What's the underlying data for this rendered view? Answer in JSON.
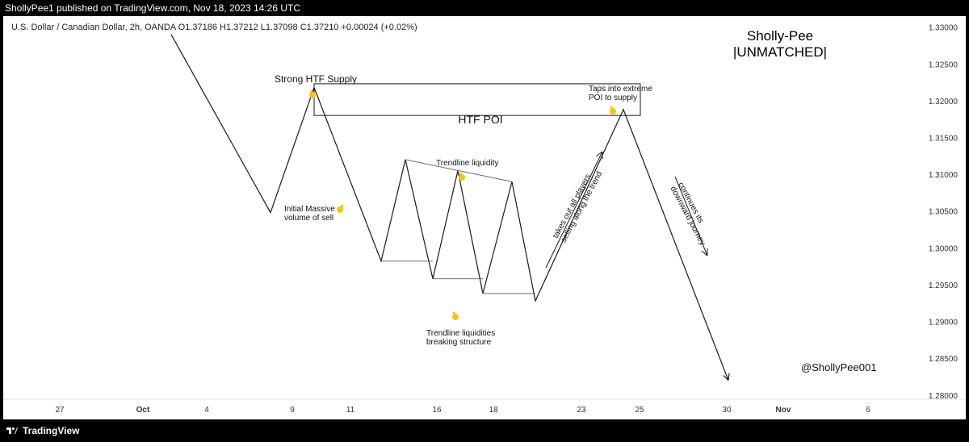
{
  "header": {
    "publisher": "ShollyPee1 published on TradingView.com, Nov 18, 2023 14:26 UTC"
  },
  "symbol_line": "U.S. Dollar / Canadian Dollar, 2h, OANDA  O1.37186  H1.37212  L1.37098  C1.37210  +0.00024 (+0.02%)",
  "brand": {
    "line1": "Sholly-Pee",
    "line2": "|UNMATCHED|",
    "handle": "@ShollyPee001"
  },
  "footer": {
    "logo_text": "TradingView"
  },
  "annotations": {
    "strong_supply": "Strong HTF Supply",
    "htf_poi": "HTF POI",
    "taps_line1": "Taps into extreme",
    "taps_line2": "POI to supply",
    "trendline_liquidity": "Trendline liquidity",
    "initial_line1": "Initial Massive",
    "initial_line2": "volume of sell",
    "liq_break_line1": "Trendline liquidities",
    "liq_break_line2": "breaking structure",
    "takes_line1": "takes out all players",
    "takes_line2": "selling along the trend",
    "continues_line1": "continues its",
    "continues_line2": "downward journey"
  },
  "colors": {
    "background": "#ffffff",
    "line": "#1a1a1a",
    "emoji": "#f5c518",
    "frame": "#000000"
  },
  "icons": {
    "pointer": "pointing-hand-emoji",
    "logo": "tradingview-logo-icon"
  },
  "chart_data": {
    "type": "line",
    "title": "U.S. Dollar / Canadian Dollar, 2h, OANDA",
    "y_axis": {
      "range": [
        1.278,
        1.3315
      ],
      "ticks": [
        "1.33000",
        "1.32500",
        "1.32000",
        "1.31500",
        "1.31000",
        "1.30500",
        "1.30000",
        "1.29500",
        "1.29000",
        "1.28500",
        "1.28000"
      ]
    },
    "x_axis": {
      "ticks": [
        "27",
        "Oct",
        "4",
        "9",
        "11",
        "16",
        "18",
        "23",
        "25",
        "30",
        "Nov",
        "6"
      ]
    },
    "price_path": [
      1.329,
      1.3048,
      1.3218,
      1.2982,
      1.312,
      1.2958,
      1.3105,
      1.2938,
      1.309,
      1.2928,
      1.3188,
      1.282
    ],
    "htf_poi_zone": [
      1.318,
      1.3223
    ],
    "trendline_top": [
      1.312,
      1.309
    ],
    "support_levels": [
      1.2982,
      1.2958,
      1.2938
    ],
    "grid": false
  }
}
